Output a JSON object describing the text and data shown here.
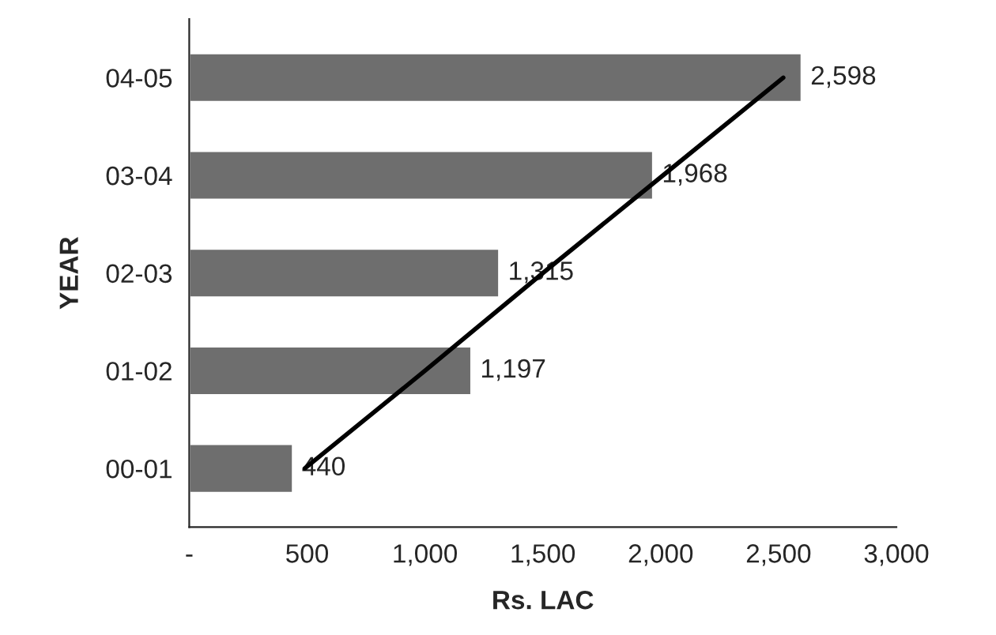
{
  "chart_data": {
    "type": "bar",
    "orientation": "horizontal",
    "xlabel": "Rs. LAC",
    "ylabel": "YEAR",
    "categories": [
      "04-05",
      "03-04",
      "02-03",
      "01-02",
      "00-01"
    ],
    "series": [
      {
        "color": "#6e6e6e",
        "values": [
          2598,
          1968,
          1315,
          1197,
          440
        ],
        "value_labels": [
          "2,598",
          "1,968",
          "1,315",
          "1,197",
          "440"
        ]
      },
      {
        "type": "line",
        "color": "#000000",
        "values": [
          2520,
          2010,
          1500,
          1000,
          490
        ]
      }
    ],
    "xlim": [
      0,
      3000
    ],
    "xticks": [
      {
        "value": 0,
        "label": "-"
      },
      500,
      {
        "value": 1000,
        "label": "1,000"
      },
      {
        "value": 1500,
        "label": "1,500"
      },
      {
        "value": 2000,
        "label": "2,000"
      },
      {
        "value": 2500,
        "label": "2,500"
      },
      {
        "value": 3000,
        "label": "3,000"
      }
    ],
    "grid": false,
    "legend": false,
    "line_style": "solid",
    "marker": "none"
  }
}
